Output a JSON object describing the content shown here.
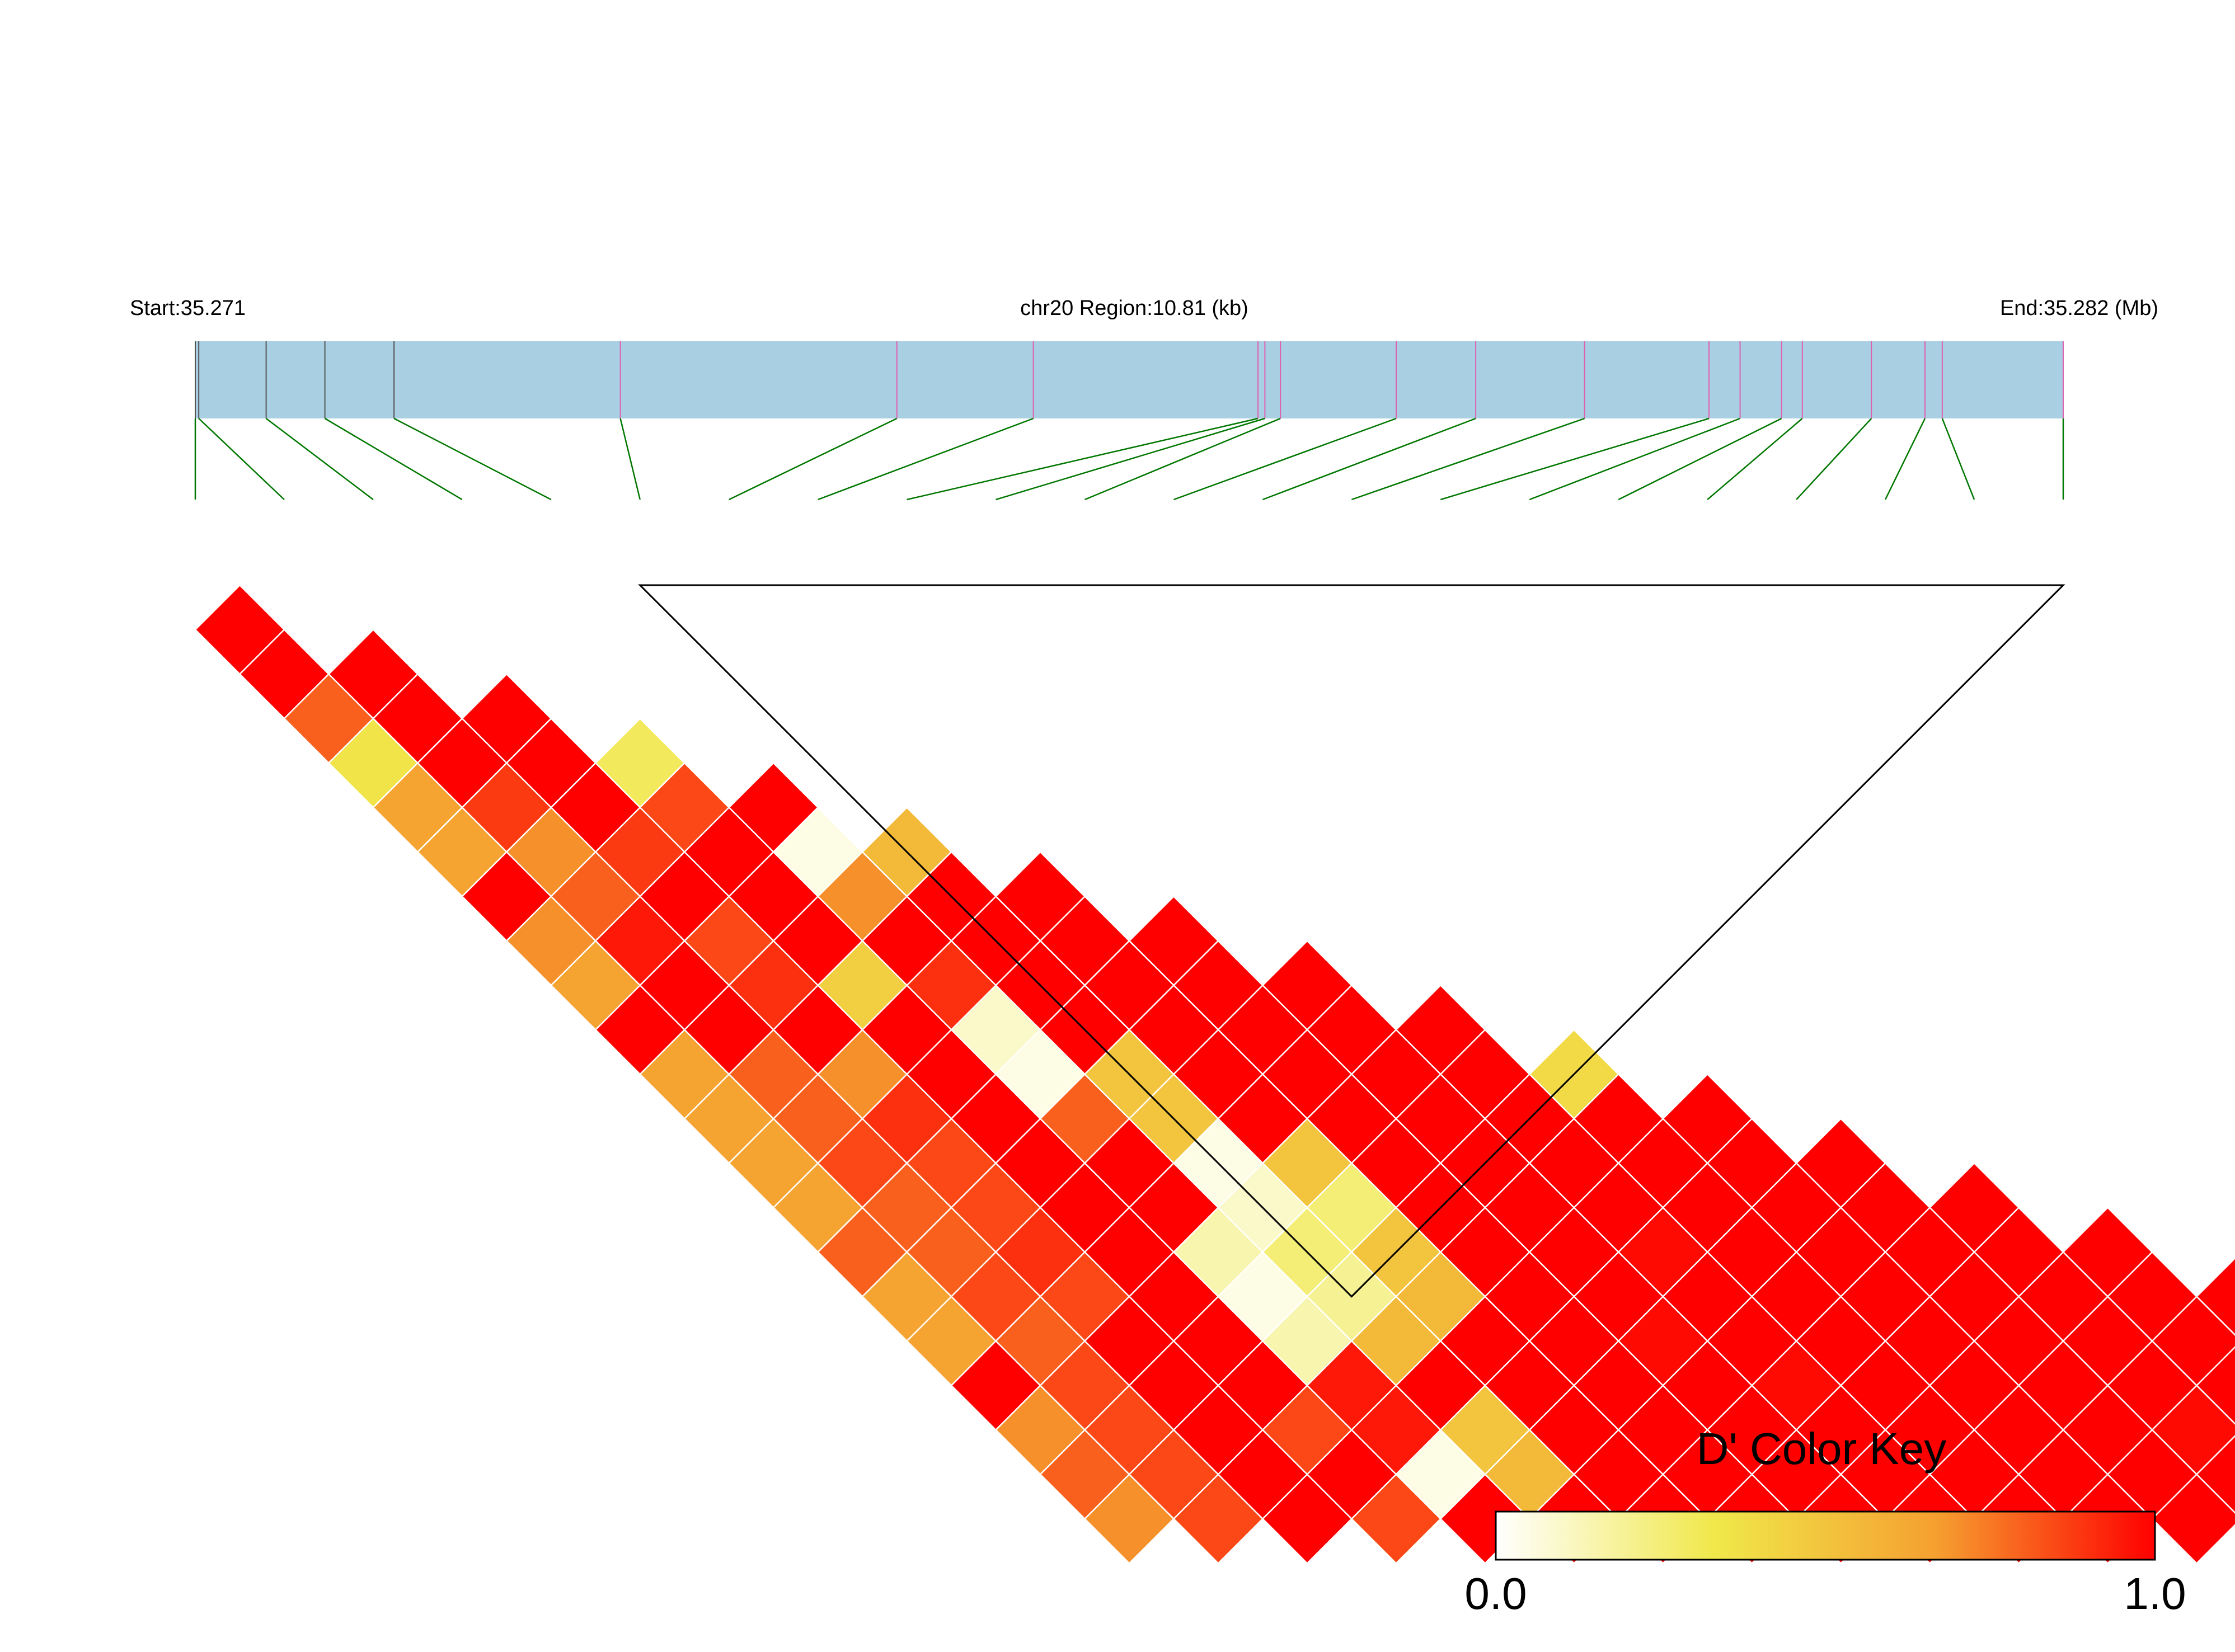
{
  "chart_data": {
    "type": "heatmap",
    "title": "",
    "region_label": "chr20 Region:10.81 (kb)",
    "start_label": "Start:35.271",
    "end_label": "End:35.282 (Mb)",
    "snp_positions_kb": [
      0.0,
      0.02,
      0.41,
      0.75,
      1.15,
      2.46,
      4.06,
      4.85,
      6.15,
      6.19,
      6.28,
      6.95,
      7.41,
      8.04,
      8.76,
      8.94,
      9.18,
      9.3,
      9.7,
      10.01,
      10.11,
      10.81
    ],
    "block_range_indexes": [
      5,
      21
    ],
    "dprime_matrix": [
      [
        1.0
      ],
      [
        1.0,
        1.0
      ],
      [
        0.8,
        1.0,
        1.0
      ],
      [
        0.35,
        1.0,
        1.0,
        0.3
      ],
      [
        0.65,
        0.88,
        1.0,
        0.85,
        1.0
      ],
      [
        0.65,
        0.7,
        0.88,
        1.0,
        0.05,
        0.55
      ],
      [
        1.0,
        0.8,
        1.0,
        1.0,
        0.7,
        1.0,
        1.0
      ],
      [
        0.7,
        0.95,
        0.85,
        1.0,
        1.0,
        1.0,
        1.0,
        1.0
      ],
      [
        0.65,
        1.0,
        0.9,
        0.45,
        0.9,
        1.0,
        1.0,
        1.0,
        1.0
      ],
      [
        1.0,
        1.0,
        1.0,
        1.0,
        0.1,
        1.0,
        1.0,
        1.0,
        1.0,
        1.0
      ],
      [
        0.65,
        0.8,
        0.7,
        1.0,
        0.05,
        0.5,
        1.0,
        1.0,
        1.0,
        1.0,
        0.4
      ],
      [
        0.65,
        0.8,
        0.9,
        1.0,
        0.8,
        0.5,
        1.0,
        1.0,
        1.0,
        1.0,
        1.0,
        1.0
      ],
      [
        0.65,
        0.85,
        0.85,
        1.0,
        1.0,
        0.05,
        0.5,
        1.0,
        1.0,
        1.0,
        1.0,
        1.0,
        1.0
      ],
      [
        0.65,
        0.8,
        0.85,
        1.0,
        1.0,
        0.1,
        0.25,
        1.0,
        1.0,
        1.0,
        1.0,
        1.0,
        1.0,
        1.0
      ],
      [
        0.8,
        0.8,
        0.9,
        1.0,
        0.15,
        0.25,
        0.5,
        1.0,
        1.0,
        0.98,
        1.0,
        1.0,
        1.0,
        1.0,
        1.0
      ],
      [
        0.65,
        0.85,
        0.85,
        1.0,
        0.05,
        0.2,
        0.55,
        1.0,
        1.0,
        1.0,
        1.0,
        1.0,
        1.0,
        1.0,
        1.0,
        1.0
      ],
      [
        0.65,
        0.8,
        1.0,
        1.0,
        0.15,
        0.55,
        1.0,
        1.0,
        0.98,
        1.0,
        1.0,
        1.0,
        1.0,
        1.0,
        1.0,
        1.0,
        1.0
      ],
      [
        1.0,
        0.85,
        1.0,
        1.0,
        0.95,
        1.0,
        1.0,
        1.0,
        1.0,
        0.98,
        1.0,
        1.0,
        1.0,
        1.0,
        1.0,
        1.0,
        1.0,
        1.0
      ],
      [
        0.7,
        0.85,
        1.0,
        0.85,
        0.95,
        0.5,
        1.0,
        1.0,
        1.0,
        1.0,
        1.0,
        1.0,
        1.0,
        0.98,
        1.0,
        1.0,
        1.0,
        1.0,
        1.0
      ],
      [
        0.8,
        0.85,
        1.0,
        1.0,
        0.05,
        0.55,
        1.0,
        1.0,
        1.0,
        1.0,
        1.0,
        1.0,
        1.0,
        1.0,
        1.0,
        1.0,
        1.0,
        1.0,
        1.0,
        1.0
      ],
      [
        0.7,
        0.85,
        1.0,
        0.85,
        1.0,
        1.0,
        1.0,
        1.0,
        1.0,
        1.0,
        1.0,
        1.0,
        1.0,
        1.0,
        1.0,
        1.0,
        1.0,
        1.0,
        1.0,
        1.0,
        1.0
      ]
    ],
    "color_key": {
      "title": "D' Color Key",
      "min_label": "0.0",
      "max_label": "1.0",
      "min": 0.0,
      "max": 1.0,
      "colors": [
        "#ffffff",
        "#f0e84a",
        "#f5a030",
        "#ff0000"
      ]
    },
    "colors": {
      "track_fill": "#a8cfe2",
      "tick_grey": "#555555",
      "tick_pink": "#e060b0",
      "connector": "#007700",
      "cell_border": "#ffffff",
      "block_outline": "#000000"
    }
  }
}
